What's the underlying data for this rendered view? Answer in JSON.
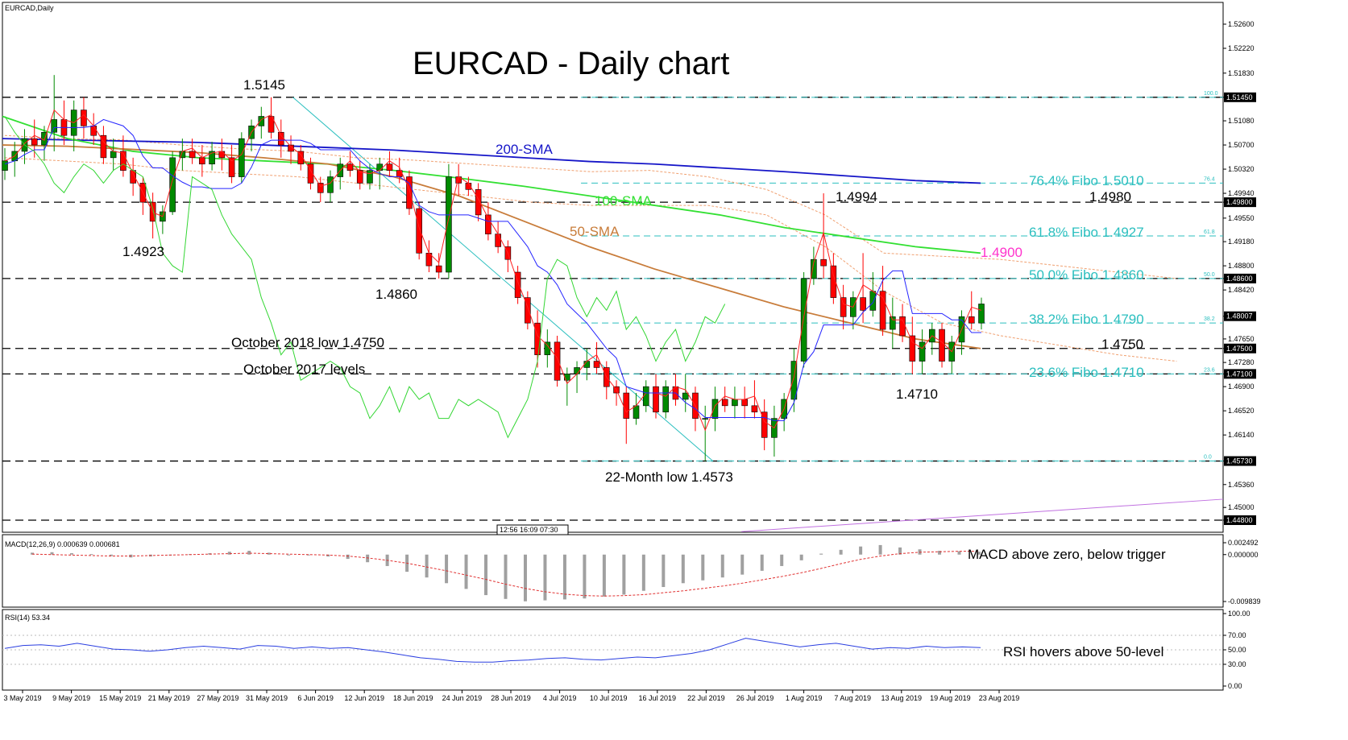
{
  "symbol_label": "EURCAD,Daily",
  "title": "EURCAD - Daily chart",
  "macd_label": "MACD(12,26,9) 0.000639 0.000681",
  "rsi_label": "RSI(14) 53.34",
  "time_box": "12:56 16:09 07:30",
  "colors": {
    "bull": "#008a00",
    "bear": "#ff0000",
    "sma200": "#1515c8",
    "sma100": "#33e033",
    "sma50": "#c87c3a",
    "fib": "#2bbfbf",
    "level": "#000000",
    "tenkan": "#ff2020",
    "kijun": "#2525ff",
    "chikou": "#33d633",
    "cloud": "#f0a070",
    "res_magenta": "#ff33cc",
    "trend_purple": "#c070e0",
    "macd_signal": "#e03030",
    "macd_hist": "#a0a0a0",
    "rsi": "#2a3ee0"
  },
  "chart_data": [
    {
      "type": "candlestick",
      "title": "EURCAD - Daily chart",
      "ylim": [
        1.4455,
        1.5285
      ],
      "y_ticks": [
        "1.52600",
        "1.52220",
        "1.51830",
        "1.51450",
        "1.51080",
        "1.50700",
        "1.50320",
        "1.49940",
        "1.49800",
        "1.49550",
        "1.49180",
        "1.48800",
        "1.48600",
        "1.48420",
        "1.48007",
        "1.47650",
        "1.47500",
        "1.47280",
        "1.47100",
        "1.46900",
        "1.46520",
        "1.46140",
        "1.45730",
        "1.45360",
        "1.45000",
        "1.44800"
      ],
      "price_boxes": [
        "1.51450",
        "1.49800",
        "1.48600",
        "1.48007",
        "1.47500",
        "1.47100",
        "1.45730",
        "1.44800"
      ],
      "x_dates": [
        "3 May 2019",
        "9 May 2019",
        "15 May 2019",
        "21 May 2019",
        "27 May 2019",
        "31 May 2019",
        "6 Jun 2019",
        "12 Jun 2019",
        "18 Jun 2019",
        "24 Jun 2019",
        "28 Jun 2019",
        "4 Jul 2019",
        "10 Jul 2019",
        "16 Jul 2019",
        "22 Jul 2019",
        "26 Jul 2019",
        "1 Aug 2019",
        "7 Aug 2019",
        "13 Aug 2019",
        "19 Aug 2019",
        "23 Aug 2019"
      ],
      "candles": [
        [
          1.503,
          1.5065,
          1.5015,
          1.5045
        ],
        [
          1.5045,
          1.5075,
          1.502,
          1.506
        ],
        [
          1.506,
          1.5095,
          1.504,
          1.508
        ],
        [
          1.508,
          1.511,
          1.505,
          1.507
        ],
        [
          1.507,
          1.51,
          1.5045,
          1.509
        ],
        [
          1.509,
          1.518,
          1.506,
          1.511
        ],
        [
          1.511,
          1.514,
          1.507,
          1.5085
        ],
        [
          1.5085,
          1.514,
          1.506,
          1.5125
        ],
        [
          1.5125,
          1.5145,
          1.508,
          1.51
        ],
        [
          1.51,
          1.512,
          1.507,
          1.5085
        ],
        [
          1.5085,
          1.51,
          1.504,
          1.505
        ],
        [
          1.505,
          1.508,
          1.503,
          1.506
        ],
        [
          1.506,
          1.5085,
          1.502,
          1.503
        ],
        [
          1.503,
          1.505,
          1.499,
          1.501
        ],
        [
          1.501,
          1.502,
          1.496,
          1.498
        ],
        [
          1.498,
          1.4995,
          1.4923,
          1.495
        ],
        [
          1.495,
          1.4975,
          1.493,
          1.4965
        ],
        [
          1.4965,
          1.506,
          1.496,
          1.505
        ],
        [
          1.505,
          1.508,
          1.503,
          1.506
        ],
        [
          1.506,
          1.508,
          1.504,
          1.505
        ],
        [
          1.505,
          1.507,
          1.502,
          1.504
        ],
        [
          1.504,
          1.5075,
          1.503,
          1.506
        ],
        [
          1.506,
          1.508,
          1.503,
          1.505
        ],
        [
          1.505,
          1.507,
          1.501,
          1.502
        ],
        [
          1.502,
          1.509,
          1.501,
          1.508
        ],
        [
          1.508,
          1.511,
          1.506,
          1.51
        ],
        [
          1.51,
          1.513,
          1.508,
          1.5115
        ],
        [
          1.5115,
          1.5145,
          1.508,
          1.509
        ],
        [
          1.509,
          1.511,
          1.505,
          1.507
        ],
        [
          1.507,
          1.5085,
          1.504,
          1.506
        ],
        [
          1.506,
          1.507,
          1.503,
          1.504
        ],
        [
          1.504,
          1.505,
          1.5,
          1.501
        ],
        [
          1.501,
          1.502,
          1.498,
          1.4995
        ],
        [
          1.4995,
          1.503,
          1.498,
          1.502
        ],
        [
          1.502,
          1.505,
          1.5,
          1.504
        ],
        [
          1.504,
          1.506,
          1.502,
          1.503
        ],
        [
          1.503,
          1.5045,
          1.5,
          1.501
        ],
        [
          1.501,
          1.504,
          1.5,
          1.503
        ],
        [
          1.503,
          1.505,
          1.5,
          1.504
        ],
        [
          1.504,
          1.506,
          1.502,
          1.503
        ],
        [
          1.503,
          1.505,
          1.501,
          1.502
        ],
        [
          1.502,
          1.503,
          1.496,
          1.497
        ],
        [
          1.497,
          1.498,
          1.489,
          1.49
        ],
        [
          1.49,
          1.492,
          1.487,
          1.488
        ],
        [
          1.488,
          1.49,
          1.486,
          1.487
        ],
        [
          1.487,
          1.504,
          1.486,
          1.502
        ],
        [
          1.502,
          1.504,
          1.499,
          1.501
        ],
        [
          1.501,
          1.502,
          1.499,
          1.5
        ],
        [
          1.5,
          1.501,
          1.495,
          1.496
        ],
        [
          1.496,
          1.498,
          1.492,
          1.493
        ],
        [
          1.493,
          1.495,
          1.49,
          1.491
        ],
        [
          1.491,
          1.492,
          1.487,
          1.489
        ],
        [
          1.487,
          1.488,
          1.482,
          1.483
        ],
        [
          1.483,
          1.484,
          1.478,
          1.479
        ],
        [
          1.479,
          1.481,
          1.472,
          1.474
        ],
        [
          1.474,
          1.478,
          1.472,
          1.476
        ],
        [
          1.476,
          1.477,
          1.469,
          1.47
        ],
        [
          1.47,
          1.472,
          1.466,
          1.471
        ],
        [
          1.471,
          1.473,
          1.468,
          1.472
        ],
        [
          1.472,
          1.475,
          1.47,
          1.473
        ],
        [
          1.473,
          1.476,
          1.471,
          1.472
        ],
        [
          1.472,
          1.473,
          1.467,
          1.469
        ],
        [
          1.469,
          1.47,
          1.466,
          1.468
        ],
        [
          1.468,
          1.469,
          1.46,
          1.464
        ],
        [
          1.464,
          1.468,
          1.463,
          1.466
        ],
        [
          1.466,
          1.47,
          1.465,
          1.469
        ],
        [
          1.469,
          1.471,
          1.464,
          1.465
        ],
        [
          1.465,
          1.47,
          1.464,
          1.469
        ],
        [
          1.469,
          1.471,
          1.466,
          1.467
        ],
        [
          1.467,
          1.471,
          1.465,
          1.468
        ],
        [
          1.468,
          1.469,
          1.462,
          1.464
        ],
        [
          1.464,
          1.466,
          1.4573,
          1.464
        ],
        [
          1.464,
          1.469,
          1.462,
          1.467
        ],
        [
          1.467,
          1.469,
          1.465,
          1.466
        ],
        [
          1.466,
          1.469,
          1.464,
          1.467
        ],
        [
          1.467,
          1.469,
          1.464,
          1.466
        ],
        [
          1.466,
          1.47,
          1.464,
          1.465
        ],
        [
          1.465,
          1.467,
          1.459,
          1.461
        ],
        [
          1.461,
          1.466,
          1.458,
          1.464
        ],
        [
          1.464,
          1.468,
          1.462,
          1.467
        ],
        [
          1.467,
          1.475,
          1.465,
          1.473
        ],
        [
          1.473,
          1.487,
          1.472,
          1.486
        ],
        [
          1.486,
          1.491,
          1.485,
          1.489
        ],
        [
          1.489,
          1.4994,
          1.486,
          1.488
        ],
        [
          1.488,
          1.49,
          1.482,
          1.483
        ],
        [
          1.483,
          1.485,
          1.478,
          1.48
        ],
        [
          1.48,
          1.484,
          1.478,
          1.483
        ],
        [
          1.483,
          1.49,
          1.479,
          1.481
        ],
        [
          1.481,
          1.487,
          1.48,
          1.484
        ],
        [
          1.484,
          1.488,
          1.477,
          1.478
        ],
        [
          1.478,
          1.483,
          1.475,
          1.48
        ],
        [
          1.48,
          1.482,
          1.476,
          1.477
        ],
        [
          1.477,
          1.48,
          1.471,
          1.473
        ],
        [
          1.473,
          1.478,
          1.471,
          1.476
        ],
        [
          1.476,
          1.479,
          1.474,
          1.478
        ],
        [
          1.478,
          1.479,
          1.472,
          1.473
        ],
        [
          1.473,
          1.477,
          1.471,
          1.476
        ],
        [
          1.476,
          1.481,
          1.474,
          1.48
        ],
        [
          1.48,
          1.484,
          1.478,
          1.479
        ],
        [
          1.479,
          1.483,
          1.478,
          1.482
        ]
      ],
      "sma200": [
        1.508,
        1.5078,
        1.5076,
        1.5074,
        1.507,
        1.5066,
        1.5062,
        1.5056,
        1.505,
        1.5044,
        1.504,
        1.5034,
        1.5028,
        1.5021,
        1.5014,
        1.501
      ],
      "sma100": [
        1.5115,
        1.508,
        1.506,
        1.505,
        1.5045,
        1.504,
        1.503,
        1.5018,
        1.5005,
        1.499,
        1.4975,
        1.496,
        1.494,
        1.4925,
        1.491,
        1.49
      ],
      "sma50": [
        1.507,
        1.5068,
        1.5063,
        1.5058,
        1.505,
        1.504,
        1.502,
        1.499,
        1.495,
        1.491,
        1.4875,
        1.4845,
        1.4815,
        1.479,
        1.4765,
        1.475
      ],
      "fib_levels": [
        {
          "ratio": "0.0",
          "value": 1.4573
        },
        {
          "ratio": "23.6",
          "value": 1.471,
          "label": "23.6% Fibo 1.4710"
        },
        {
          "ratio": "38.2",
          "value": 1.479,
          "label": "38.2% Fibo 1.4790"
        },
        {
          "ratio": "50.0",
          "value": 1.486,
          "label": "50.0% Fibo 1.4860"
        },
        {
          "ratio": "61.8",
          "value": 1.4927,
          "label": "61.8% Fibo 1.4927"
        },
        {
          "ratio": "76.4",
          "value": 1.501,
          "label": "76.4% Fibo 1.5010"
        },
        {
          "ratio": "100.0",
          "value": 1.5145
        }
      ],
      "horizontal_levels": [
        1.5145,
        1.498,
        1.486,
        1.475,
        1.471,
        1.4573,
        1.448
      ],
      "annotations": {
        "sma200": "200-SMA",
        "sma100": "100-SMA",
        "sma50": "50-SMA",
        "high_1_5145": "1.5145",
        "low_1_4923": "1.4923",
        "low_1_4860": "1.4860",
        "oct2018": "October 2018 low 1.4750",
        "oct2017": "October 2017 levels",
        "low22m": "22-Month low 1.4573",
        "high_1_4994": "1.4994",
        "lvl_1_4980": "1.4980",
        "res_1_4900": "1.4900",
        "lvl_1_4750": "1.4750",
        "low_1_4710": "1.4710"
      }
    },
    {
      "type": "bar",
      "title": "MACD(12,26,9) 0.000639 0.000681",
      "y_ticks": [
        "0.002492",
        "0.000000",
        "-0.009839"
      ],
      "histogram": [
        0.0004,
        0.0005,
        0.0003,
        0.0001,
        -0.0003,
        -0.0006,
        -0.0004,
        -0.0002,
        0.0001,
        0.0003,
        0.0006,
        0.0008,
        0.0004,
        0.0,
        -0.0001,
        -0.0004,
        -0.0009,
        -0.0016,
        -0.0024,
        -0.0036,
        -0.0048,
        -0.006,
        -0.0072,
        -0.0085,
        -0.0093,
        -0.0098,
        -0.0096,
        -0.0094,
        -0.0092,
        -0.0088,
        -0.0084,
        -0.0076,
        -0.0068,
        -0.006,
        -0.0054,
        -0.0048,
        -0.0042,
        -0.0034,
        -0.0024,
        -0.0012,
        0.0002,
        0.001,
        0.0017,
        0.002,
        0.0015,
        0.0011,
        0.0008,
        0.0007,
        0.0006
      ],
      "signal": [
        0.0001,
        0.0,
        -0.0001,
        -0.0002,
        -0.0003,
        -0.0003,
        -0.0002,
        -0.0001,
        0.0,
        0.0001,
        0.0002,
        0.0003,
        0.0002,
        0.0001,
        0.0,
        -0.0001,
        -0.0003,
        -0.0007,
        -0.0012,
        -0.0018,
        -0.0026,
        -0.0034,
        -0.0043,
        -0.0052,
        -0.0062,
        -0.0071,
        -0.0078,
        -0.0083,
        -0.0086,
        -0.0087,
        -0.0086,
        -0.0084,
        -0.008,
        -0.0076,
        -0.0071,
        -0.0066,
        -0.006,
        -0.0053,
        -0.0046,
        -0.0038,
        -0.0029,
        -0.0019,
        -0.001,
        -0.0003,
        0.0002,
        0.0005,
        0.0006,
        0.0007,
        0.0007
      ],
      "annotation": "MACD above zero, below trigger"
    },
    {
      "type": "line",
      "title": "RSI(14) 53.34",
      "y_ticks": [
        "100.00",
        "70.00",
        "50.00",
        "30.00",
        "0.00"
      ],
      "ylim": [
        0,
        100
      ],
      "values": [
        52,
        56,
        57,
        55,
        59,
        55,
        51,
        50,
        48,
        50,
        53,
        55,
        53,
        51,
        56,
        55,
        52,
        54,
        52,
        53,
        50,
        47,
        43,
        39,
        37,
        34,
        33,
        33,
        35,
        36,
        38,
        39,
        37,
        36,
        38,
        40,
        39,
        42,
        45,
        50,
        58,
        66,
        62,
        58,
        54,
        57,
        59,
        55,
        51,
        53,
        52,
        55,
        53,
        54,
        53
      ],
      "annotation": "RSI hovers above 50-level"
    }
  ]
}
